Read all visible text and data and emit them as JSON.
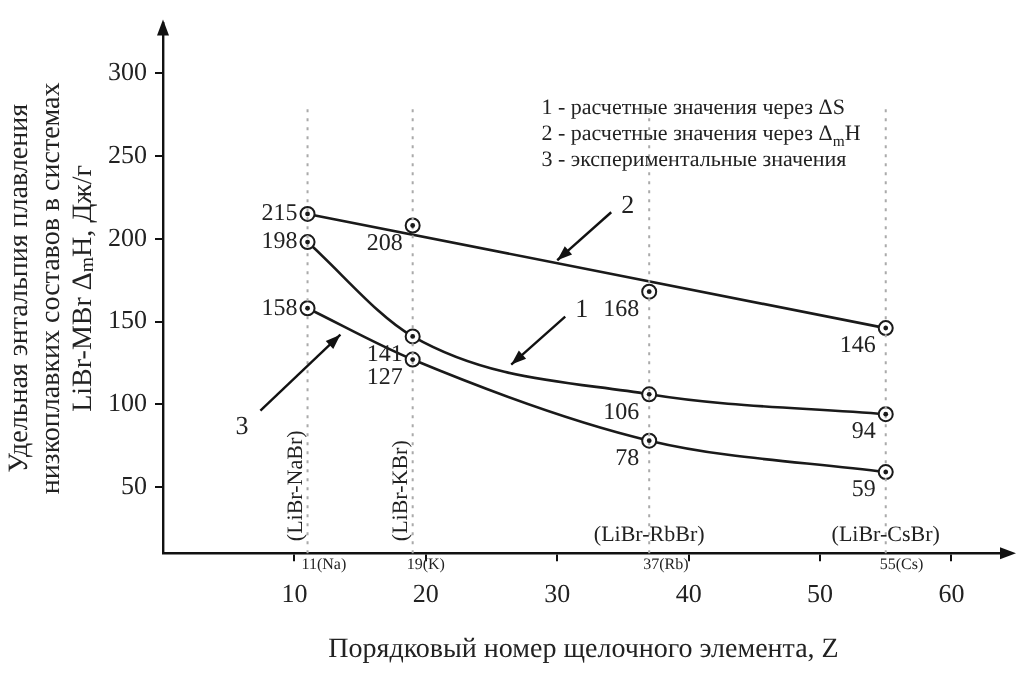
{
  "chart_data": {
    "type": "line",
    "xlabel": "Порядковый номер щелочного элемента, Z",
    "ylabel": "Удельная энтальпия плавления низкоплавких составов в системах LiBr-MBr Δ$_{m}$H, Дж/г",
    "x": [
      11,
      19,
      37,
      55
    ],
    "xlim": [
      0,
      64
    ],
    "xticks": [
      10,
      20,
      30,
      40,
      50,
      60
    ],
    "ylim": [
      10,
      330
    ],
    "yticks": [
      50,
      100,
      150,
      200,
      250,
      300
    ],
    "grid": false,
    "legend": false,
    "marker": "circle",
    "line_style": "solid",
    "series": [
      {
        "type": "scatter",
        "color": "#1a1a1a",
        "values": [
          215,
          208,
          168,
          146
        ],
        "value_labels": [
          "215",
          "208",
          "168",
          "146"
        ]
      },
      {
        "type": "line",
        "color": "#1a1a1a",
        "x": [
          11,
          55
        ],
        "values": [
          215,
          146
        ],
        "marker": "none"
      },
      {
        "type": "line",
        "color": "#1a1a1a",
        "values": [
          198,
          141,
          106,
          94
        ],
        "value_labels": [
          "198",
          "141",
          "106",
          "94"
        ]
      },
      {
        "type": "line",
        "color": "#1a1a1a",
        "values": [
          158,
          127,
          78,
          59
        ],
        "value_labels": [
          "158",
          "127",
          "78",
          "59"
        ]
      }
    ],
    "ref_lines": [
      {
        "axis": "x",
        "value": 11,
        "label": "(LiBr-NaBr)",
        "color": "#aaaaaa",
        "line_style": "dotted"
      },
      {
        "axis": "x",
        "value": 19,
        "label": "(LiBr-KBr)",
        "color": "#aaaaaa",
        "line_style": "dotted"
      },
      {
        "axis": "x",
        "value": 37,
        "label": "(LiBr-RbBr)",
        "color": "#aaaaaa",
        "line_style": "dotted"
      },
      {
        "axis": "x",
        "value": 55,
        "label": "(LiBr-CsBr)",
        "color": "#aaaaaa",
        "line_style": "dotted"
      }
    ],
    "annotations": [
      "1 - расчетные значения через ΔS",
      "2 - расчетные значения через Δ$_{m}$H",
      "3 - экспериментальные значения",
      {
        "text": "11(Na)",
        "x": 11,
        "y": 10
      },
      {
        "text": "19(K)",
        "x": 19,
        "y": 10
      },
      {
        "text": "37(Rb)",
        "x": 37,
        "y": 10
      },
      {
        "text": "55(Cs)",
        "x": 55,
        "y": 10
      },
      {
        "text": "1",
        "x": 26.5,
        "y": 124
      },
      {
        "text": "2",
        "x": 30,
        "y": 187
      },
      {
        "text": "3",
        "x": 13.5,
        "y": 142
      }
    ]
  }
}
